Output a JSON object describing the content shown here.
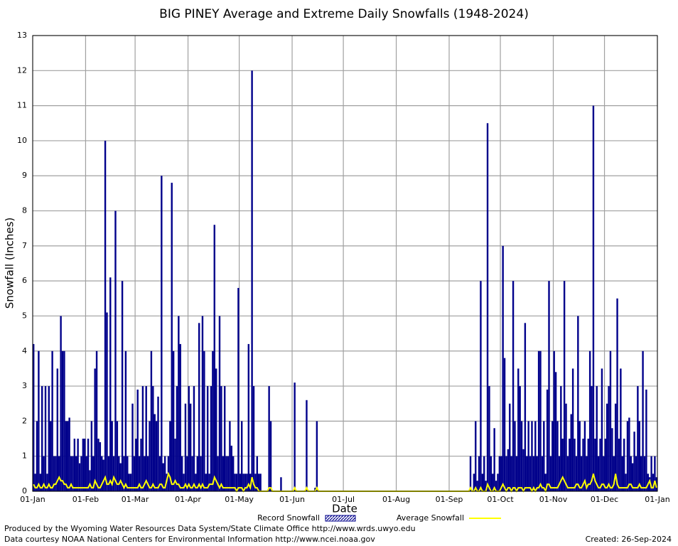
{
  "chart_data": {
    "type": "bar",
    "title": "BIG PINEY Average and Extreme Daily Snowfalls (1948-2024)",
    "x_label": "Date",
    "y_label": "Snowfall (Inches)",
    "footer_lines": [
      "Produced by the Wyoming Water Resources Data System/State Climate Office http://www.wrds.uwyo.edu",
      "Data courtesy NOAA National Centers for Environmental Information http://www.ncei.noaa.gov"
    ],
    "created": "Created:  26-Sep-2024",
    "grid": true,
    "xlim": [
      0,
      366
    ],
    "ylim": [
      0,
      13
    ],
    "yticks": [
      0,
      1,
      2,
      3,
      4,
      5,
      6,
      7,
      8,
      9,
      10,
      11,
      12,
      13
    ],
    "xticks": [
      {
        "value": 0,
        "label": "01-Jan"
      },
      {
        "value": 31,
        "label": "01-Feb"
      },
      {
        "value": 60,
        "label": "01-Mar"
      },
      {
        "value": 91,
        "label": "01-Apr"
      },
      {
        "value": 121,
        "label": "01-May"
      },
      {
        "value": 152,
        "label": "01-Jun"
      },
      {
        "value": 182,
        "label": "01-Jul"
      },
      {
        "value": 213,
        "label": "01-Aug"
      },
      {
        "value": 244,
        "label": "01-Sep"
      },
      {
        "value": 274,
        "label": "01-Oct"
      },
      {
        "value": 305,
        "label": "01-Nov"
      },
      {
        "value": 335,
        "label": "01-Dec"
      },
      {
        "value": 366,
        "label": "01-Jan"
      }
    ],
    "x": [
      0,
      1,
      2,
      3,
      4,
      5,
      6,
      7,
      8,
      9,
      10,
      11,
      12,
      13,
      14,
      15,
      16,
      17,
      18,
      19,
      20,
      21,
      22,
      23,
      24,
      25,
      26,
      27,
      28,
      29,
      30,
      31,
      32,
      33,
      34,
      35,
      36,
      37,
      38,
      39,
      40,
      41,
      42,
      43,
      44,
      45,
      46,
      47,
      48,
      49,
      50,
      51,
      52,
      53,
      54,
      55,
      56,
      57,
      58,
      59,
      60,
      61,
      62,
      63,
      64,
      65,
      66,
      67,
      68,
      69,
      70,
      71,
      72,
      73,
      74,
      75,
      76,
      77,
      78,
      79,
      80,
      81,
      82,
      83,
      84,
      85,
      86,
      87,
      88,
      89,
      90,
      91,
      92,
      93,
      94,
      95,
      96,
      97,
      98,
      99,
      100,
      101,
      102,
      103,
      104,
      105,
      106,
      107,
      108,
      109,
      110,
      111,
      112,
      113,
      114,
      115,
      116,
      117,
      118,
      119,
      120,
      121,
      122,
      123,
      124,
      125,
      126,
      127,
      128,
      129,
      130,
      131,
      132,
      133,
      134,
      135,
      136,
      137,
      138,
      139,
      140,
      141,
      142,
      143,
      144,
      145,
      146,
      147,
      148,
      149,
      150,
      151,
      152,
      153,
      154,
      155,
      156,
      157,
      158,
      159,
      160,
      161,
      162,
      163,
      164,
      165,
      166,
      167,
      168,
      169,
      170,
      171,
      172,
      173,
      174,
      175,
      176,
      177,
      178,
      179,
      180,
      181,
      182,
      183,
      184,
      185,
      186,
      187,
      188,
      189,
      190,
      191,
      192,
      193,
      194,
      195,
      196,
      197,
      198,
      199,
      200,
      201,
      202,
      203,
      204,
      205,
      206,
      207,
      208,
      209,
      210,
      211,
      212,
      213,
      214,
      215,
      216,
      217,
      218,
      219,
      220,
      221,
      222,
      223,
      224,
      225,
      226,
      227,
      228,
      229,
      230,
      231,
      232,
      233,
      234,
      235,
      236,
      237,
      238,
      239,
      240,
      241,
      242,
      243,
      244,
      245,
      246,
      247,
      248,
      249,
      250,
      251,
      252,
      253,
      254,
      255,
      256,
      257,
      258,
      259,
      260,
      261,
      262,
      263,
      264,
      265,
      266,
      267,
      268,
      269,
      270,
      271,
      272,
      273,
      274,
      275,
      276,
      277,
      278,
      279,
      280,
      281,
      282,
      283,
      284,
      285,
      286,
      287,
      288,
      289,
      290,
      291,
      292,
      293,
      294,
      295,
      296,
      297,
      298,
      299,
      300,
      301,
      302,
      303,
      304,
      305,
      306,
      307,
      308,
      309,
      310,
      311,
      312,
      313,
      314,
      315,
      316,
      317,
      318,
      319,
      320,
      321,
      322,
      323,
      324,
      325,
      326,
      327,
      328,
      329,
      330,
      331,
      332,
      333,
      334,
      335,
      336,
      337,
      338,
      339,
      340,
      341,
      342,
      343,
      344,
      345,
      346,
      347,
      348,
      349,
      350,
      351,
      352,
      353,
      354,
      355,
      356,
      357,
      358,
      359,
      360,
      361,
      362,
      363,
      364,
      365
    ],
    "series": [
      {
        "name": "Record Snowfall",
        "type": "bar",
        "color": "#00008b",
        "values": [
          4.2,
          0.5,
          2,
          4,
          0.5,
          3,
          1,
          3,
          0.5,
          3,
          2,
          4,
          1,
          1,
          3.5,
          1,
          5,
          4,
          4,
          2,
          2,
          2.1,
          1,
          1,
          1.5,
          1,
          1.5,
          0.8,
          1,
          1.5,
          1.5,
          1,
          1.5,
          0.6,
          2,
          1,
          3.5,
          4,
          1.5,
          1.4,
          1,
          0.9,
          10,
          5.1,
          1,
          6.1,
          2,
          1,
          8,
          2,
          1,
          0.8,
          6,
          1,
          4,
          1,
          0.5,
          0.5,
          2.5,
          1,
          1.5,
          2.9,
          1,
          1.5,
          3,
          1,
          3,
          1,
          2,
          4,
          3,
          2.2,
          2,
          2.7,
          1,
          9,
          0.8,
          1,
          0.5,
          1,
          2,
          8.8,
          4,
          1.5,
          3,
          5,
          4.2,
          1,
          0.5,
          2.5,
          1,
          3,
          2.5,
          1,
          3,
          0.5,
          1,
          4.8,
          1,
          5,
          4,
          0.5,
          3,
          0.5,
          3,
          4,
          7.6,
          3.5,
          1,
          5,
          3,
          1,
          3,
          1,
          1,
          2,
          1.3,
          1,
          0.5,
          0.5,
          5.8,
          0.5,
          2,
          0.5,
          0.5,
          0.5,
          4.2,
          0.5,
          12,
          3,
          0.5,
          1,
          0.5,
          0.5,
          0,
          0,
          0,
          0,
          3,
          2,
          0,
          0,
          0,
          0,
          0,
          0.4,
          0,
          0,
          0,
          0,
          0,
          0,
          0,
          3.1,
          0,
          0,
          0,
          0,
          0,
          0,
          2.6,
          0,
          0,
          0,
          0,
          0.1,
          2,
          0,
          0,
          0,
          0,
          0,
          0,
          0,
          0,
          0,
          0,
          0,
          0,
          0,
          0,
          0,
          0,
          0,
          0,
          0,
          0,
          0,
          0,
          0,
          0,
          0,
          0,
          0,
          0,
          0,
          0,
          0,
          0,
          0,
          0,
          0,
          0,
          0,
          0,
          0,
          0,
          0,
          0,
          0,
          0,
          0,
          0,
          0,
          0,
          0,
          0,
          0,
          0,
          0,
          0,
          0,
          0,
          0,
          0,
          0,
          0,
          0,
          0,
          0,
          0,
          0,
          0,
          0,
          0,
          0,
          0,
          0,
          0,
          0,
          0,
          0,
          0,
          0,
          0,
          0,
          0,
          0,
          0,
          0,
          0,
          0,
          0,
          0,
          0,
          0,
          1,
          0,
          0.5,
          2,
          0.3,
          1,
          6,
          0.5,
          1,
          0.3,
          10.5,
          3,
          1,
          0.5,
          1.8,
          0.3,
          0.5,
          1,
          1,
          7,
          3.8,
          1,
          1.2,
          2.5,
          1,
          6,
          2,
          1,
          3.5,
          3,
          2,
          1.2,
          4.8,
          1,
          2,
          1,
          2,
          1,
          2,
          1,
          4,
          4,
          1,
          2,
          0.5,
          2.9,
          6,
          1,
          2,
          4,
          3.4,
          2,
          1,
          3,
          1.5,
          6,
          2.5,
          1,
          1.5,
          2.2,
          3.5,
          1.5,
          1,
          5,
          2,
          1,
          1.5,
          2,
          1,
          1.5,
          4,
          3,
          11,
          1.5,
          3,
          1,
          1.5,
          3.5,
          1,
          1.5,
          2.5,
          3,
          4,
          1.8,
          1,
          2.5,
          5.5,
          1.5,
          3.5,
          1,
          1.5,
          0.5,
          2,
          2.1,
          1,
          0.8,
          1.7,
          1,
          3,
          2,
          1,
          4,
          1,
          2.9,
          0.5,
          0.4,
          1,
          0.5,
          1,
          0.4
        ]
      },
      {
        "name": "Average Snowfall",
        "type": "line",
        "color": "#ffff00",
        "values": [
          0.2,
          0.1,
          0.1,
          0.2,
          0.1,
          0.1,
          0.2,
          0.1,
          0.1,
          0.2,
          0.1,
          0.1,
          0.2,
          0.2,
          0.3,
          0.4,
          0.3,
          0.3,
          0.2,
          0.2,
          0.1,
          0.1,
          0.2,
          0.1,
          0.1,
          0.1,
          0.1,
          0.1,
          0.1,
          0.1,
          0.1,
          0.1,
          0.1,
          0.2,
          0.1,
          0.1,
          0.3,
          0.2,
          0.1,
          0.1,
          0.2,
          0.3,
          0.4,
          0.2,
          0.2,
          0.3,
          0.2,
          0.4,
          0.3,
          0.2,
          0.2,
          0.3,
          0.2,
          0.1,
          0.2,
          0.1,
          0.1,
          0.1,
          0.1,
          0.1,
          0.1,
          0.1,
          0.2,
          0.1,
          0.1,
          0.2,
          0.3,
          0.2,
          0.1,
          0.1,
          0.2,
          0.1,
          0.1,
          0.1,
          0.2,
          0.2,
          0.1,
          0.1,
          0.3,
          0.5,
          0.4,
          0.2,
          0.2,
          0.3,
          0.2,
          0.2,
          0.1,
          0.1,
          0.1,
          0.2,
          0.1,
          0.2,
          0.1,
          0.1,
          0.2,
          0.1,
          0.1,
          0.2,
          0.1,
          0.2,
          0.1,
          0.1,
          0.1,
          0.2,
          0.2,
          0.2,
          0.4,
          0.3,
          0.2,
          0.1,
          0.2,
          0.1,
          0.1,
          0.1,
          0.1,
          0.1,
          0.1,
          0.1,
          0.1,
          0,
          0.1,
          0.1,
          0.1,
          0,
          0.1,
          0.1,
          0.2,
          0.1,
          0.4,
          0.2,
          0.1,
          0.1,
          0,
          0,
          0,
          0,
          0,
          0,
          0.1,
          0.1,
          0,
          0,
          0,
          0,
          0,
          0,
          0,
          0,
          0,
          0,
          0,
          0,
          0,
          0.1,
          0,
          0,
          0,
          0,
          0,
          0,
          0.1,
          0,
          0,
          0,
          0,
          0,
          0.1,
          0,
          0,
          0,
          0,
          0,
          0,
          0,
          0,
          0,
          0,
          0,
          0,
          0,
          0,
          0,
          0,
          0,
          0,
          0,
          0,
          0,
          0,
          0,
          0,
          0,
          0,
          0,
          0,
          0,
          0,
          0,
          0,
          0,
          0,
          0,
          0,
          0,
          0,
          0,
          0,
          0,
          0,
          0,
          0,
          0,
          0,
          0,
          0,
          0,
          0,
          0,
          0,
          0,
          0,
          0,
          0,
          0,
          0,
          0,
          0,
          0,
          0,
          0,
          0,
          0,
          0,
          0,
          0,
          0,
          0,
          0,
          0,
          0,
          0,
          0,
          0,
          0,
          0,
          0,
          0,
          0,
          0,
          0,
          0,
          0,
          0,
          0,
          0,
          0,
          0.1,
          0,
          0,
          0.1,
          0,
          0,
          0.1,
          0,
          0,
          0,
          0.2,
          0.1,
          0,
          0,
          0.1,
          0,
          0,
          0,
          0.1,
          0.2,
          0.1,
          0,
          0.1,
          0.1,
          0,
          0.1,
          0.1,
          0,
          0.1,
          0.1,
          0.1,
          0,
          0.1,
          0.1,
          0.1,
          0.1,
          0,
          0.1,
          0,
          0.1,
          0.1,
          0.2,
          0.1,
          0.1,
          0,
          0.2,
          0.2,
          0.1,
          0.1,
          0.1,
          0.1,
          0.1,
          0.2,
          0.3,
          0.4,
          0.3,
          0.2,
          0.1,
          0.1,
          0.1,
          0.1,
          0.1,
          0.2,
          0.2,
          0.1,
          0.1,
          0.2,
          0.3,
          0.1,
          0.2,
          0.2,
          0.3,
          0.5,
          0.3,
          0.2,
          0.1,
          0.1,
          0.2,
          0.2,
          0.1,
          0.1,
          0.2,
          0.1,
          0.1,
          0.2,
          0.5,
          0.2,
          0.1,
          0.1,
          0.1,
          0.1,
          0.1,
          0.1,
          0.2,
          0.2,
          0.1,
          0.1,
          0.1,
          0.1,
          0.2,
          0.1,
          0.1,
          0.1,
          0.1,
          0.2,
          0.3,
          0.1,
          0.1,
          0.3,
          0.1
        ]
      }
    ]
  }
}
